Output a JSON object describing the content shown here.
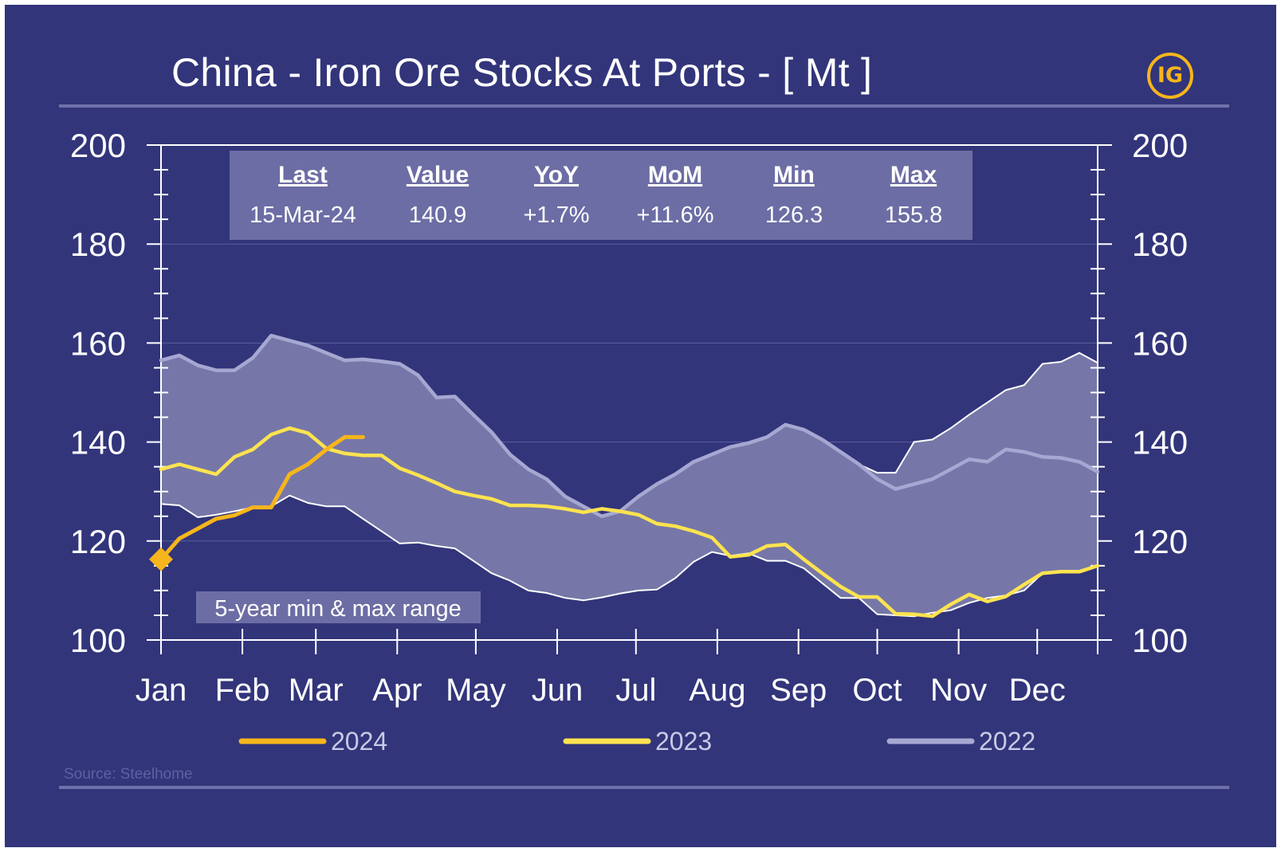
{
  "title": "China - Iron Ore Stocks At Ports - [ Mt ]",
  "logo_text": "IG",
  "source": "Source: Steelhome",
  "range_label": "5-year min & max range",
  "stats": {
    "headers": [
      "Last",
      "Value",
      "YoY",
      "MoM",
      "Min",
      "Max"
    ],
    "values": [
      "15-Mar-24",
      "140.9",
      "+1.7%",
      "+11.6%",
      "126.3",
      "155.8"
    ]
  },
  "colors": {
    "background": "#32357a",
    "range_band": "#7677a8",
    "series_2024": "#f6b51c",
    "series_2023": "#fde34f",
    "series_2022": "#a6a8d2",
    "range_edge": "#ffffff",
    "text": "#ffffff"
  },
  "chart_data": {
    "type": "line",
    "title": "China - Iron Ore Stocks At Ports - [ Mt ]",
    "xlabel": "",
    "ylabel": "",
    "x_unit": "week of year",
    "xlim": [
      1,
      52
    ],
    "ylim": [
      100,
      200
    ],
    "y_ticks": [
      100,
      120,
      140,
      160,
      180,
      200
    ],
    "x_tick_labels": [
      "Jan",
      "Feb",
      "Mar",
      "Apr",
      "May",
      "Jun",
      "Jul",
      "Aug",
      "Sep",
      "Oct",
      "Nov",
      "Dec"
    ],
    "x_tick_weeks": [
      1,
      5.43,
      9.43,
      13.86,
      18.14,
      22.57,
      26.86,
      31.29,
      35.71,
      40,
      44.43,
      48.71
    ],
    "grid": true,
    "legend_position": "bottom",
    "range_band": {
      "name": "5-year min & max range",
      "x": [
        1,
        2,
        3,
        4,
        5,
        6,
        7,
        8,
        9,
        10,
        11,
        12,
        13,
        14,
        15,
        16,
        17,
        18,
        19,
        20,
        21,
        22,
        23,
        24,
        25,
        26,
        27,
        28,
        29,
        30,
        31,
        32,
        33,
        34,
        35,
        36,
        37,
        38,
        39,
        40,
        41,
        42,
        43,
        44,
        45,
        46,
        47,
        48,
        49,
        50,
        51,
        52
      ],
      "max": [
        156.5,
        157.5,
        155.5,
        154.5,
        154.5,
        157,
        161.5,
        160.5,
        159.5,
        158,
        156.5,
        156.7,
        156.3,
        155.8,
        153.5,
        149,
        149.2,
        145.5,
        142,
        137.5,
        134.5,
        132.5,
        129,
        127,
        125,
        126,
        129,
        131.5,
        133.5,
        136,
        137.5,
        139,
        139.8,
        141,
        143.5,
        142.5,
        140.5,
        138,
        135.5,
        133.8,
        133.8,
        140,
        140.5,
        142.8,
        145.5,
        148,
        150.5,
        151.5,
        155.8,
        156.2,
        158,
        156
      ],
      "min": [
        127.5,
        127.2,
        124.8,
        125.3,
        126,
        126.8,
        127,
        129.2,
        127.7,
        127,
        127,
        124.5,
        122,
        119.5,
        119.7,
        119,
        118.5,
        116,
        113.5,
        112,
        110,
        109.5,
        108.5,
        108,
        108.6,
        109.4,
        110,
        110.2,
        112.5,
        115.8,
        117.8,
        117,
        117.5,
        116,
        116,
        114.5,
        111.5,
        108.5,
        108.5,
        105.2,
        105,
        104.8,
        105.5,
        106,
        107.5,
        108.5,
        109,
        110,
        113.5,
        114,
        114,
        115
      ]
    },
    "series": [
      {
        "name": "2024",
        "x": [
          1,
          2,
          3,
          4,
          5,
          6,
          7,
          8,
          9,
          10,
          11,
          12
        ],
        "values": [
          116.3,
          120.5,
          122.5,
          124.5,
          125.2,
          126.8,
          126.8,
          133.5,
          135.5,
          138.5,
          141,
          141
        ],
        "marker_at_start": true
      },
      {
        "name": "2023",
        "x": [
          1,
          2,
          3,
          4,
          5,
          6,
          7,
          8,
          9,
          10,
          11,
          12,
          13,
          14,
          15,
          16,
          17,
          18,
          19,
          20,
          21,
          22,
          23,
          24,
          25,
          26,
          27,
          28,
          29,
          30,
          31,
          32,
          33,
          34,
          35,
          36,
          37,
          38,
          39,
          40,
          41,
          42,
          43,
          44,
          45,
          46,
          47,
          48,
          49,
          50,
          51,
          52
        ],
        "values": [
          134.5,
          135.5,
          134.5,
          133.5,
          137,
          138.5,
          141.5,
          142.8,
          141.8,
          138.7,
          137.7,
          137.3,
          137.3,
          134.7,
          133.3,
          131.7,
          130,
          129.2,
          128.5,
          127.2,
          127.2,
          127,
          126.5,
          125.8,
          126.5,
          126,
          125.3,
          123.5,
          123,
          122,
          120.7,
          116.8,
          117.2,
          119,
          119.3,
          116.3,
          113.5,
          110.8,
          108.7,
          108.7,
          105.3,
          105.2,
          104.8,
          107.2,
          109.2,
          107.8,
          108.8,
          111.2,
          113.5,
          113.8,
          113.8,
          115
        ]
      },
      {
        "name": "2022",
        "x": [
          1,
          2,
          3,
          4,
          5,
          6,
          7,
          8,
          9,
          10,
          11,
          12,
          13,
          14,
          15,
          16,
          17,
          18,
          19,
          20,
          21,
          22,
          23,
          24,
          25,
          26,
          27,
          28,
          29,
          30,
          31,
          32,
          33,
          34,
          35,
          36,
          37,
          38,
          39,
          40,
          41,
          42,
          43,
          44,
          45,
          46,
          47,
          48,
          49,
          50,
          51,
          52
        ],
        "values": [
          156.5,
          157.5,
          155.5,
          154.5,
          154.5,
          157,
          161.5,
          160.5,
          159.5,
          158,
          156.5,
          156.7,
          156.3,
          155.8,
          153.5,
          149,
          149.2,
          145.5,
          142,
          137.5,
          134.5,
          132.5,
          129,
          127,
          125,
          126,
          129,
          131.5,
          133.5,
          136,
          137.5,
          139,
          139.8,
          141,
          143.5,
          142.5,
          140.5,
          138,
          135.5,
          132.5,
          130.5,
          131.5,
          132.5,
          134.5,
          136.5,
          136,
          138.5,
          138,
          137,
          136.8,
          136,
          134
        ]
      }
    ]
  }
}
